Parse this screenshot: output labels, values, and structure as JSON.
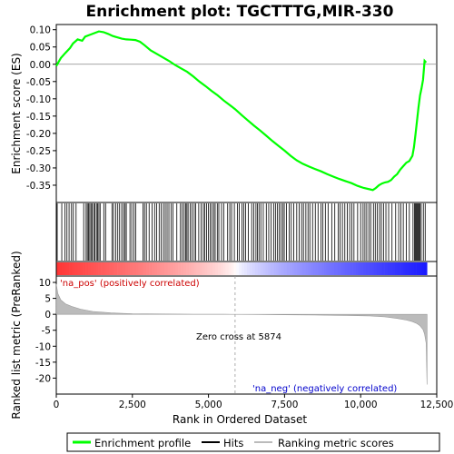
{
  "chart_data": {
    "type": "line",
    "title": "Enrichment plot: TGCTTTG,MIR-330",
    "es_panel": {
      "ylabel": "Enrichment score (ES)",
      "ylim": [
        -0.4,
        0.115
      ],
      "yticks": [
        0.1,
        0.05,
        0.0,
        -0.05,
        -0.1,
        -0.15,
        -0.2,
        -0.25,
        -0.3,
        -0.35
      ],
      "ytick_labels": [
        "0.10",
        "0.05",
        "0.00",
        "-0.05",
        "-0.10",
        "-0.15",
        "-0.20",
        "-0.25",
        "-0.30",
        "-0.35"
      ],
      "series": [
        {
          "name": "Enrichment profile",
          "color": "#00ff00",
          "x": [
            0,
            150,
            300,
            450,
            550,
            700,
            850,
            950,
            1100,
            1250,
            1400,
            1550,
            1700,
            1850,
            2000,
            2150,
            2300,
            2450,
            2600,
            2750,
            2900,
            3100,
            3300,
            3500,
            3700,
            3900,
            4100,
            4300,
            4500,
            4700,
            4900,
            5100,
            5300,
            5500,
            5700,
            5874,
            6100,
            6300,
            6500,
            6700,
            6900,
            7100,
            7300,
            7500,
            7700,
            7900,
            8100,
            8300,
            8500,
            8700,
            8900,
            9100,
            9300,
            9500,
            9700,
            9900,
            10100,
            10300,
            10400,
            10500,
            10600,
            10700,
            10800,
            10900,
            11000,
            11100,
            11200,
            11300,
            11400,
            11500,
            11600,
            11700,
            11750,
            11800,
            11850,
            11900,
            11950,
            12000,
            12050,
            12100,
            12150
          ],
          "y": [
            -0.005,
            0.018,
            0.033,
            0.047,
            0.06,
            0.072,
            0.068,
            0.08,
            0.085,
            0.09,
            0.095,
            0.093,
            0.088,
            0.082,
            0.078,
            0.074,
            0.072,
            0.071,
            0.07,
            0.065,
            0.055,
            0.04,
            0.03,
            0.02,
            0.01,
            -0.002,
            -0.012,
            -0.022,
            -0.035,
            -0.05,
            -0.063,
            -0.077,
            -0.09,
            -0.105,
            -0.118,
            -0.13,
            -0.148,
            -0.163,
            -0.178,
            -0.192,
            -0.207,
            -0.222,
            -0.236,
            -0.25,
            -0.265,
            -0.278,
            -0.288,
            -0.296,
            -0.303,
            -0.31,
            -0.318,
            -0.325,
            -0.332,
            -0.338,
            -0.344,
            -0.352,
            -0.358,
            -0.362,
            -0.364,
            -0.358,
            -0.35,
            -0.345,
            -0.342,
            -0.34,
            -0.335,
            -0.325,
            -0.318,
            -0.305,
            -0.295,
            -0.285,
            -0.28,
            -0.265,
            -0.24,
            -0.205,
            -0.165,
            -0.125,
            -0.09,
            -0.07,
            -0.045,
            0.01,
            0.005
          ]
        }
      ]
    },
    "hits_panel": {
      "description_color": "#000000",
      "hit_positions": [
        30,
        180,
        280,
        350,
        420,
        500,
        560,
        650,
        900,
        980,
        1020,
        1060,
        1100,
        1140,
        1180,
        1230,
        1270,
        1320,
        1360,
        1400,
        1440,
        1560,
        1620,
        1830,
        1880,
        1950,
        2020,
        2080,
        2150,
        2210,
        2260,
        2300,
        2420,
        2480,
        2550,
        2610,
        2850,
        2900,
        2960,
        3050,
        3150,
        3230,
        3300,
        3380,
        3450,
        3520,
        3580,
        3640,
        3700,
        3770,
        3830,
        3960,
        4080,
        4140,
        4200,
        4250,
        4290,
        4330,
        4400,
        4460,
        4530,
        4580,
        4680,
        4760,
        4830,
        4880,
        4940,
        5000,
        5060,
        5110,
        5170,
        5220,
        5290,
        5340,
        5430,
        5500,
        5630,
        5700,
        5760,
        5850,
        5950,
        6010,
        6100,
        6160,
        6220,
        6310,
        6420,
        6490,
        6560,
        6610,
        6660,
        6720,
        6800,
        6900,
        6980,
        7060,
        7140,
        7200,
        7260,
        7320,
        7380,
        7440,
        7490,
        7560,
        7650,
        7720,
        7800,
        7900,
        7980,
        8060,
        8120,
        8200,
        8270,
        8330,
        8420,
        8510,
        8600,
        8700,
        8760,
        8840,
        8930,
        9050,
        9150,
        9260,
        9320,
        9400,
        9480,
        9560,
        9640,
        9710,
        9780,
        9900,
        10000,
        10080,
        10140,
        10200,
        10270,
        10330,
        10420,
        10480,
        10550,
        10620,
        10680,
        10750,
        10830,
        10920,
        11030,
        11150,
        11250,
        11320,
        11400,
        11500,
        11600,
        11720,
        11770,
        11800,
        11830,
        11860,
        11890,
        11920,
        11950,
        11990,
        12060,
        12120
      ]
    },
    "metric_panel": {
      "ylabel": "Ranked list metric (PreRanked)",
      "xlabel": "Rank in Ordered Dataset",
      "ylim": [
        -25,
        12
      ],
      "yticks": [
        10,
        5,
        0,
        -5,
        -10,
        -15,
        -20
      ],
      "ytick_labels": [
        "10",
        "5",
        "0",
        "-5",
        "-10",
        "-15",
        "-20"
      ],
      "xlim": [
        0,
        12500
      ],
      "xticks": [
        0,
        2500,
        5000,
        7500,
        10000,
        12500
      ],
      "xtick_labels": [
        "0",
        "2,500",
        "5,000",
        "7,500",
        "10,000",
        "12,500"
      ],
      "x": [
        0,
        50,
        150,
        300,
        500,
        800,
        1200,
        1800,
        2500,
        3500,
        4500,
        5500,
        5874,
        6500,
        7500,
        8500,
        9500,
        10300,
        10800,
        11200,
        11500,
        11700,
        11850,
        11950,
        12050,
        12100,
        12150,
        12180
      ],
      "values": [
        9.5,
        6.5,
        4.5,
        3.3,
        2.5,
        1.6,
        0.9,
        0.45,
        0.2,
        0.1,
        0.05,
        0.02,
        0.0,
        -0.05,
        -0.15,
        -0.25,
        -0.35,
        -0.5,
        -0.8,
        -1.3,
        -1.8,
        -2.3,
        -2.9,
        -3.6,
        -4.8,
        -6.2,
        -9.0,
        -22.0
      ],
      "zero_cross_x": 5874,
      "zero_cross_label": "Zero cross at 5874",
      "pos_label": "'na_pos' (positively correlated)",
      "neg_label": "'na_neg' (negatively correlated)",
      "pos_color": "#cc0000",
      "neg_color": "#0000cc",
      "fill_color": "#bbbbbb"
    },
    "legend": {
      "placement": "bottom",
      "entries": [
        {
          "label": "Enrichment profile",
          "color": "#00ff00"
        },
        {
          "label": "Hits",
          "color": "#000000"
        },
        {
          "label": "Ranking metric scores",
          "color": "#bbbbbb"
        }
      ]
    }
  }
}
